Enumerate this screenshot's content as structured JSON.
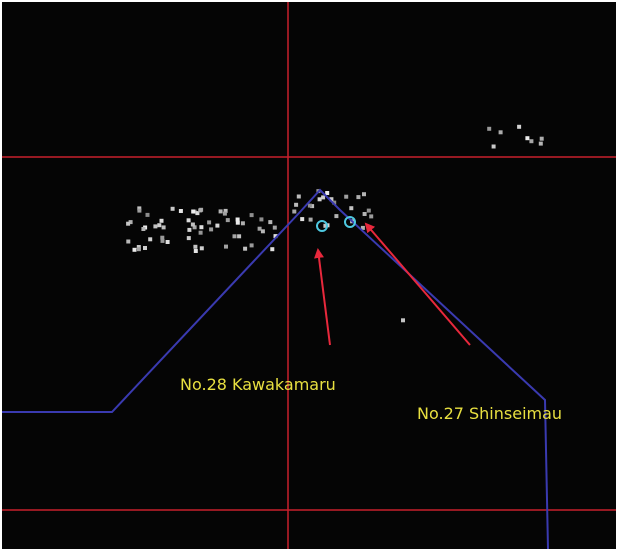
{
  "annotations": [
    {
      "label": "No.28 Kawakamaru"
    },
    {
      "label": "No.27 Shinseimau"
    }
  ]
}
